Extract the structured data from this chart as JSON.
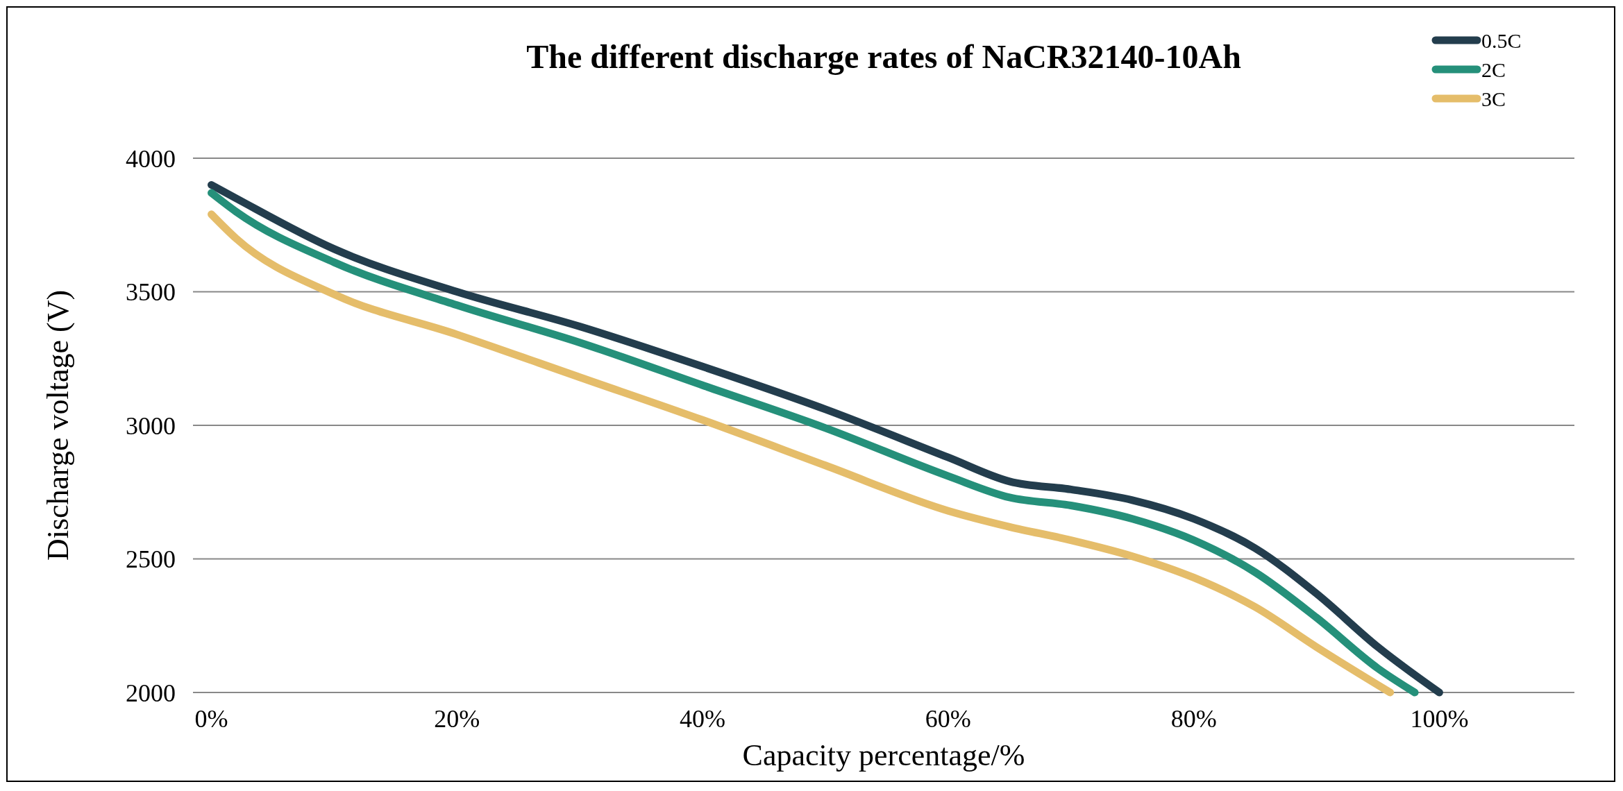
{
  "chart_data": {
    "type": "line",
    "title": "The different discharge rates of NaCR32140-10Ah",
    "xlabel": "Capacity percentage/%",
    "ylabel": "Discharge voltage (V)",
    "xlim": [
      -1.5,
      111
    ],
    "xticks": [
      {
        "value": 0,
        "label": "0%"
      },
      {
        "value": 20,
        "label": "20%"
      },
      {
        "value": 40,
        "label": "40%"
      },
      {
        "value": 60,
        "label": "60%"
      },
      {
        "value": 80,
        "label": "80%"
      },
      {
        "value": 100,
        "label": "100%"
      }
    ],
    "ylim": [
      2000,
      4000
    ],
    "yticks": [
      2000,
      2500,
      3000,
      3500,
      4000
    ],
    "grid": "y",
    "legend": "top right",
    "marker": "none",
    "line_style": "solid",
    "series": [
      {
        "name": "0.5C",
        "color": "#233d4d",
        "x": [
          0,
          2,
          10,
          20,
          30,
          40,
          50,
          60,
          65,
          70,
          75,
          80,
          85,
          90,
          95,
          100
        ],
        "values": [
          3900,
          3850,
          3660,
          3500,
          3370,
          3220,
          3060,
          2880,
          2790,
          2760,
          2720,
          2650,
          2540,
          2370,
          2170,
          2000
        ]
      },
      {
        "name": "2C",
        "color": "#25907a",
        "x": [
          0,
          2,
          10,
          20,
          30,
          40,
          50,
          60,
          65,
          70,
          75,
          80,
          85,
          90,
          95,
          98
        ],
        "values": [
          3870,
          3800,
          3610,
          3450,
          3310,
          3150,
          2990,
          2810,
          2730,
          2700,
          2650,
          2570,
          2450,
          2280,
          2090,
          2000
        ]
      },
      {
        "name": "3C",
        "color": "#e5bd6a",
        "x": [
          0,
          2,
          10,
          20,
          30,
          40,
          50,
          60,
          65,
          70,
          75,
          80,
          85,
          90,
          96
        ],
        "values": [
          3790,
          3700,
          3490,
          3340,
          3180,
          3020,
          2850,
          2680,
          2620,
          2570,
          2510,
          2430,
          2320,
          2170,
          2000
        ]
      }
    ]
  }
}
